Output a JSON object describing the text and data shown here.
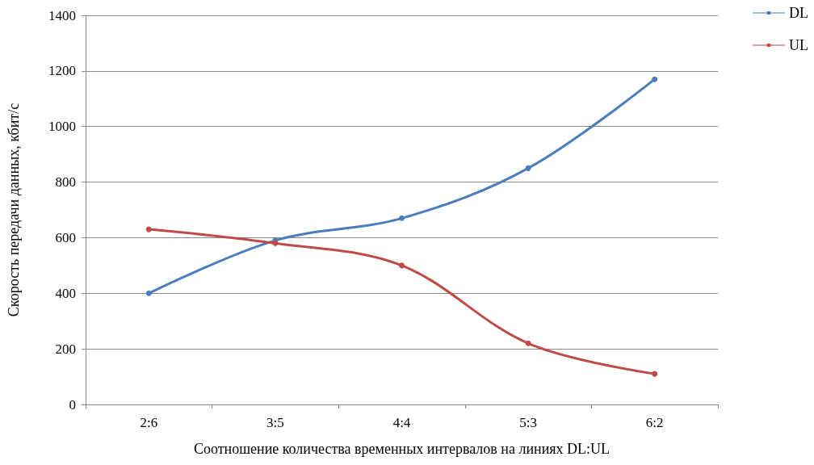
{
  "chart_data": {
    "type": "line",
    "xlabel": "Соотношение количества временных интервалов на линиях DL:UL",
    "ylabel": "Скорость передачи данных, кбит/с",
    "categories": [
      "2:6",
      "3:5",
      "4:4",
      "5:3",
      "6:2"
    ],
    "series": [
      {
        "name": "DL",
        "color": "#4a7ebb",
        "values": [
          400,
          590,
          670,
          850,
          1170
        ]
      },
      {
        "name": "UL",
        "color": "#be4b48",
        "values": [
          630,
          580,
          500,
          220,
          110
        ]
      }
    ],
    "ylim": [
      0,
      1400
    ],
    "yticks": [
      0,
      200,
      400,
      600,
      800,
      1000,
      1200,
      1400
    ],
    "grid": "y",
    "legend": "top right",
    "marker": "circle",
    "line_style": "solid"
  }
}
